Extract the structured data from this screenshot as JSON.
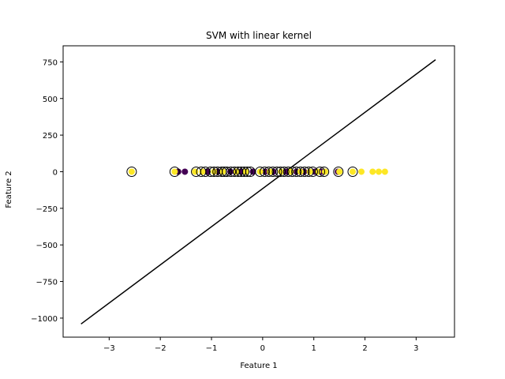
{
  "chart_data": {
    "type": "scatter",
    "title": "SVM with linear kernel",
    "xlabel": "Feature 1",
    "ylabel": "Feature 2",
    "xlim": [
      -3.9,
      3.75
    ],
    "ylim": [
      -1130,
      860
    ],
    "xticks": [
      -3,
      -2,
      -1,
      0,
      1,
      2,
      3
    ],
    "yticks": [
      -1000,
      -750,
      -500,
      -250,
      0,
      250,
      500,
      750
    ],
    "xtick_labels": [
      "−3",
      "−2",
      "−1",
      "0",
      "1",
      "2",
      "3"
    ],
    "ytick_labels": [
      "−1000",
      "−750",
      "−500",
      "−250",
      "0",
      "250",
      "500",
      "750"
    ],
    "grid": false,
    "colors": {
      "class_0": "#440154",
      "class_1": "#fde725",
      "line": "#000000",
      "support_ring": "#000000"
    },
    "series": [
      {
        "class": 0,
        "x": [
          -1.65,
          -1.52,
          -1.08,
          -0.88,
          -0.63,
          -0.42,
          -0.19,
          0.05,
          0.21,
          0.47,
          0.66,
          0.81,
          1.02,
          1.15,
          1.47
        ],
        "y": [
          0,
          0,
          0,
          0,
          0,
          0,
          0,
          0,
          0,
          0,
          0,
          0,
          0,
          0,
          0
        ]
      },
      {
        "class": 1,
        "x": [
          -2.56,
          -1.72,
          -1.32,
          -1.18,
          -0.95,
          -0.78,
          -0.52,
          -0.33,
          -0.05,
          0.14,
          0.36,
          0.55,
          0.74,
          0.92,
          1.08,
          1.22,
          1.5,
          1.76,
          1.93,
          2.15,
          2.27,
          2.39
        ],
        "y": [
          0,
          0,
          0,
          0,
          0,
          0,
          0,
          0,
          0,
          0,
          0,
          0,
          0,
          0,
          0,
          0,
          0,
          0,
          0,
          0,
          0,
          0
        ]
      }
    ],
    "support_vectors": {
      "x": [
        -2.56,
        -1.72,
        -1.3,
        -1.2,
        -1.12,
        -1.02,
        -0.95,
        -0.88,
        -0.8,
        -0.75,
        -0.7,
        -0.62,
        -0.55,
        -0.48,
        -0.42,
        -0.36,
        -0.3,
        -0.24,
        -0.05,
        0.04,
        0.12,
        0.2,
        0.28,
        0.35,
        0.42,
        0.5,
        0.58,
        0.66,
        0.74,
        0.82,
        0.9,
        0.98,
        1.12,
        1.2,
        1.48,
        1.76
      ],
      "y": [
        0,
        0,
        0,
        0,
        0,
        0,
        0,
        0,
        0,
        0,
        0,
        0,
        0,
        0,
        0,
        0,
        0,
        0,
        0,
        0,
        0,
        0,
        0,
        0,
        0,
        0,
        0,
        0,
        0,
        0,
        0,
        0,
        0,
        0,
        0,
        0
      ]
    },
    "decision_line": {
      "x": [
        -3.55,
        3.38
      ],
      "y": [
        -1040,
        765
      ]
    }
  }
}
